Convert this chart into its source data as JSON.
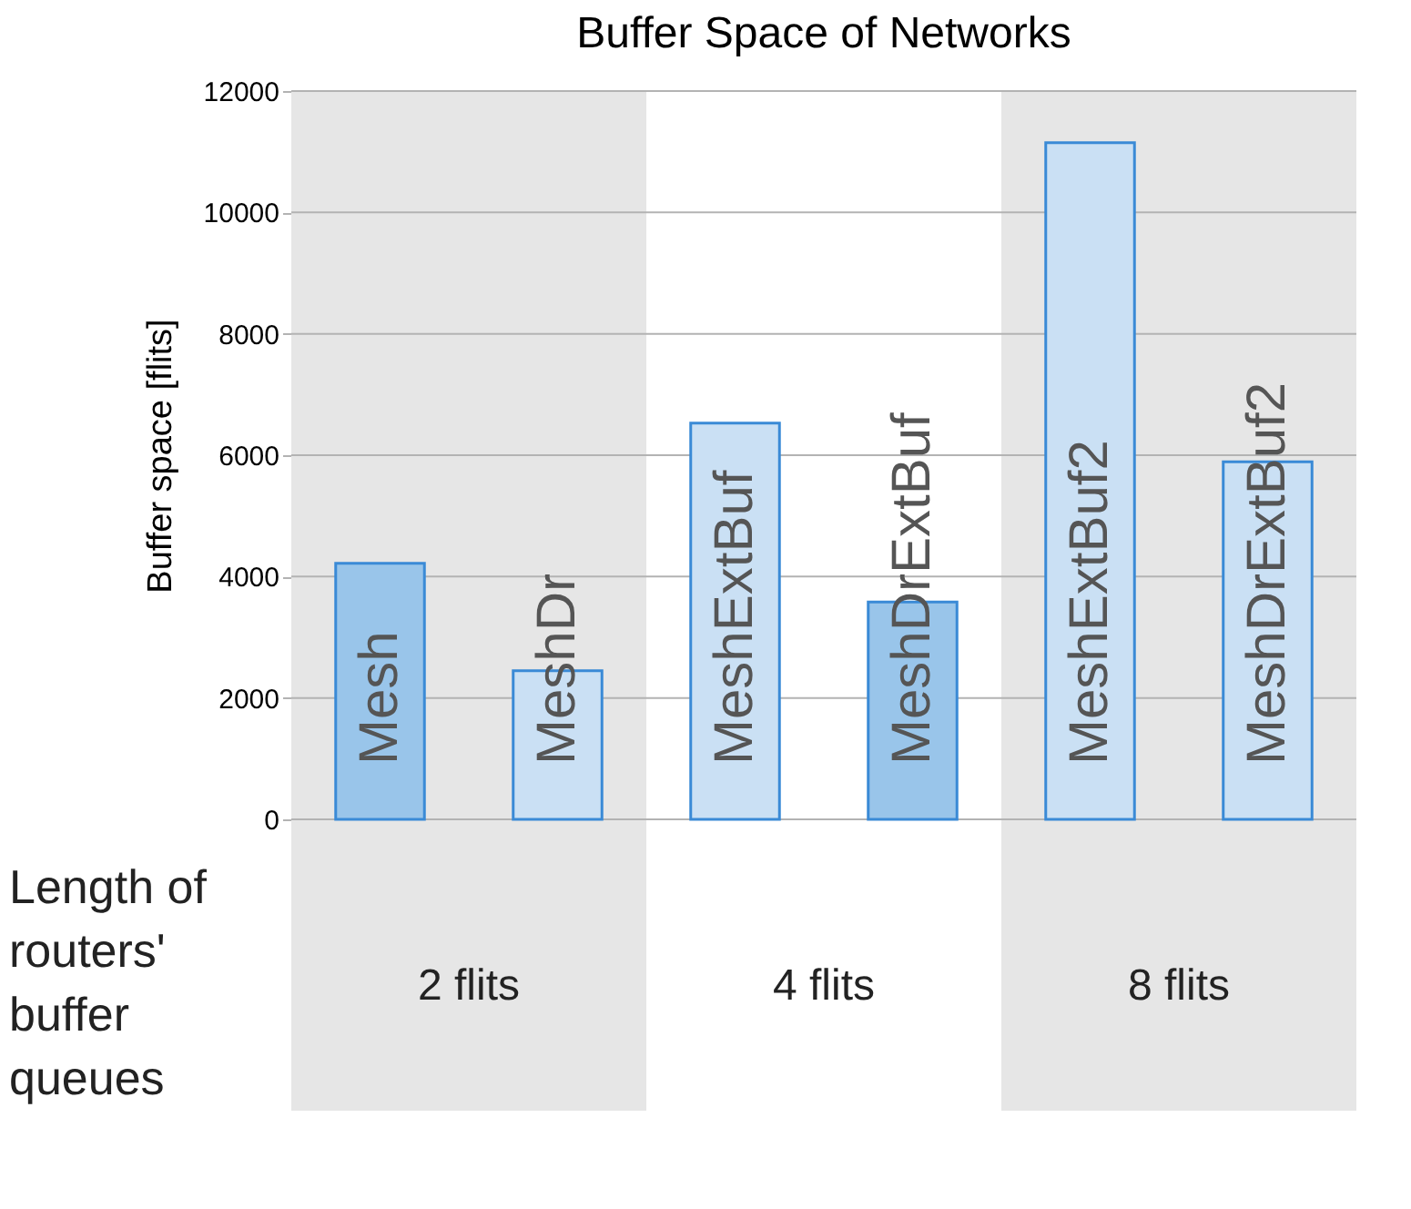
{
  "chart_data": {
    "type": "bar",
    "title": "Buffer Space of Networks",
    "xlabel": "Length of routers' buffer queues",
    "ylabel": "Buffer space [flits]",
    "categories": [
      "Mesh",
      "MeshDr",
      "MeshExtBuf",
      "MeshDrExtBuf",
      "MeshExtBuf2",
      "MeshDrExtBuf2"
    ],
    "values": [
      4220,
      2450,
      6530,
      3580,
      11150,
      5890
    ],
    "colors": [
      "#99c5ea",
      "#cae0f4",
      "#cae0f4",
      "#99c5ea",
      "#cae0f4",
      "#cae0f4"
    ],
    "annotations": [
      "4 flits"
    ],
    "ylim": [
      0,
      12000
    ],
    "yticks": [
      0,
      2000,
      4000,
      6000,
      8000,
      10000,
      12000
    ],
    "grid": "y",
    "bands": [
      {
        "axis": "x",
        "from": "Mesh",
        "to": "MeshDr",
        "label": "2 flits",
        "color": "#e6e6e6"
      },
      {
        "axis": "x",
        "from": "MeshExtBuf2",
        "to": "MeshDrExtBuf2",
        "label": "8 flits",
        "color": "#e6e6e6"
      }
    ]
  }
}
